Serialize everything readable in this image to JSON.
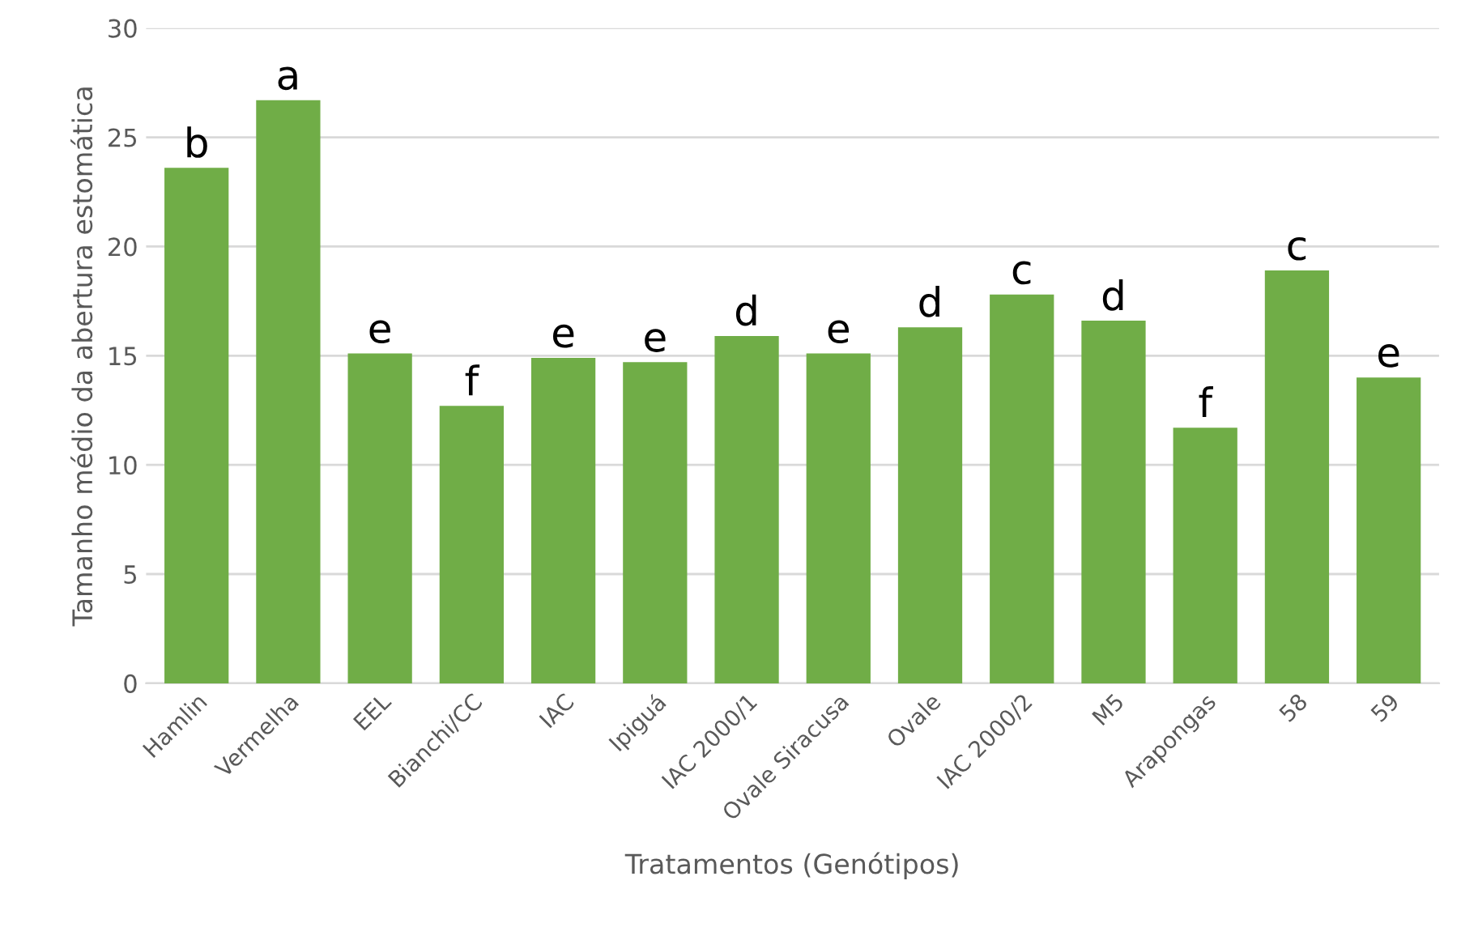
{
  "chart_data": {
    "type": "bar",
    "xlabel": "Tratamentos (Genótipos)",
    "ylabel": "Tamanho médio da abertura estomática",
    "categories": [
      "Hamlin",
      "Vermelha",
      "EEL",
      "Bianchi/CC",
      "IAC",
      "Ipiguá",
      "IAC 2000/1",
      "Ovale Siracusa",
      "Ovale",
      "IAC 2000/2",
      "M5",
      "Arapongas",
      "58",
      "59"
    ],
    "values": [
      23.6,
      26.7,
      15.1,
      12.7,
      14.9,
      14.7,
      15.9,
      15.1,
      16.3,
      17.8,
      16.6,
      11.7,
      18.9,
      14.0
    ],
    "color": "#70ad47",
    "ylim": [
      0,
      30
    ],
    "yticks": [
      0,
      5,
      10,
      15,
      20,
      25,
      30
    ],
    "grid": "y",
    "legend": false,
    "annotations": [
      {
        "text": "b",
        "x": "Hamlin",
        "y": 23.6
      },
      {
        "text": "a",
        "x": "Vermelha",
        "y": 26.7
      },
      {
        "text": "e",
        "x": "EEL",
        "y": 15.1
      },
      {
        "text": "f",
        "x": "Bianchi/CC",
        "y": 12.7
      },
      {
        "text": "e",
        "x": "IAC",
        "y": 14.9
      },
      {
        "text": "e",
        "x": "Ipiguá",
        "y": 14.7
      },
      {
        "text": "d",
        "x": "IAC 2000/1",
        "y": 15.9
      },
      {
        "text": "e",
        "x": "Ovale Siracusa",
        "y": 15.1
      },
      {
        "text": "d",
        "x": "Ovale",
        "y": 16.3
      },
      {
        "text": "c",
        "x": "IAC 2000/2",
        "y": 17.8
      },
      {
        "text": "d",
        "x": "M5",
        "y": 16.6
      },
      {
        "text": "f",
        "x": "Arapongas",
        "y": 11.7
      },
      {
        "text": "c",
        "x": "58",
        "y": 18.9
      },
      {
        "text": "e",
        "x": "59",
        "y": 14.0
      }
    ]
  }
}
